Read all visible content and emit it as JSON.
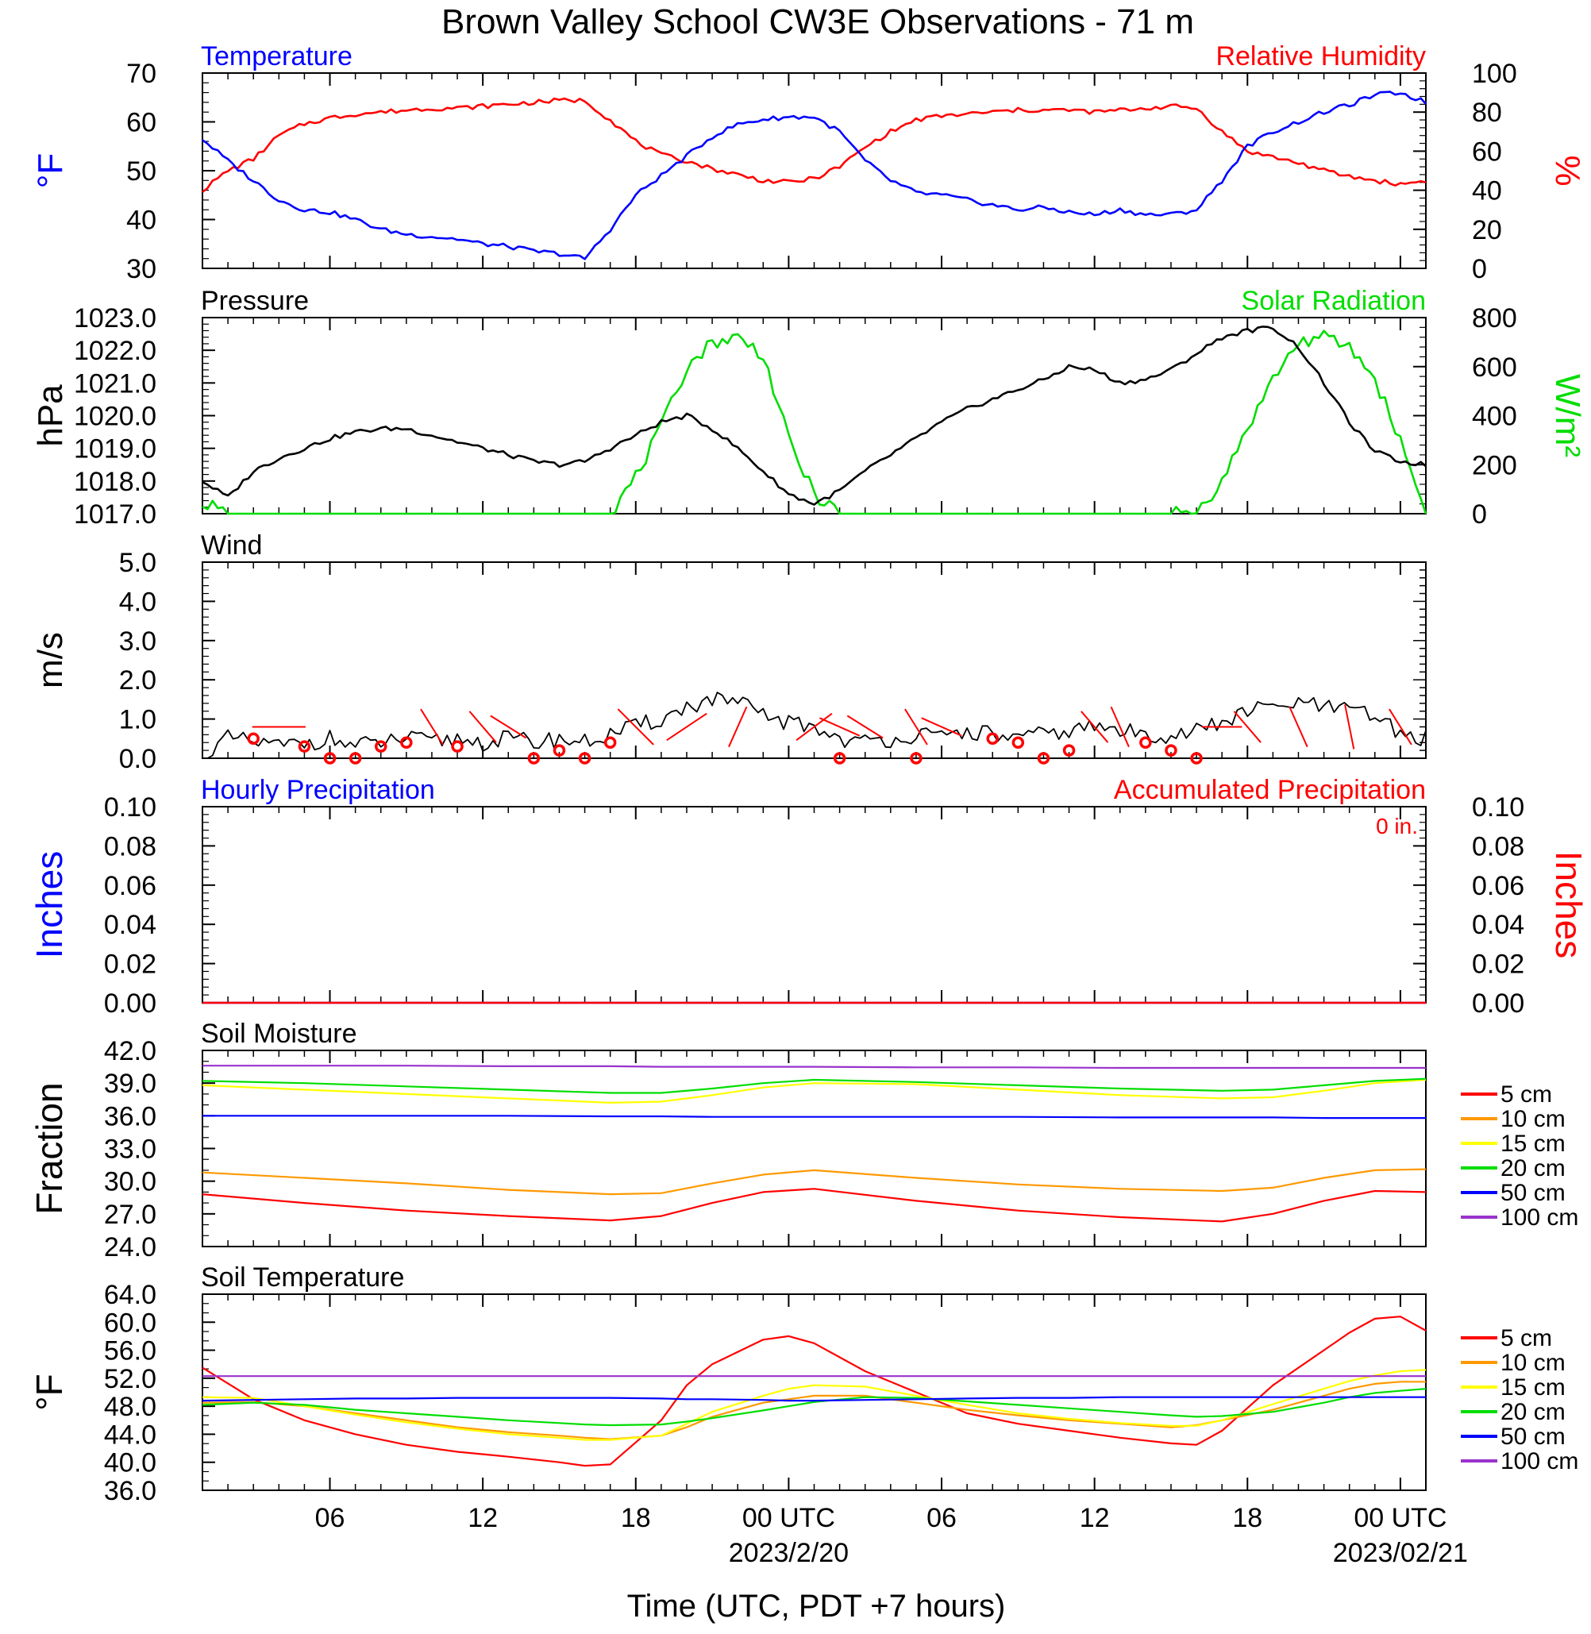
{
  "title": "Brown Valley School CW3E Observations - 71 m",
  "x_axis": {
    "label": "Time (UTC, PDT +7 hours)",
    "range_hours": [
      0,
      48
    ],
    "ticks": [
      {
        "h": 5,
        "label": "06"
      },
      {
        "h": 11,
        "label": "12"
      },
      {
        "h": 17,
        "label": "18"
      },
      {
        "h": 23,
        "label": "00 UTC"
      },
      {
        "h": 29,
        "label": "06"
      },
      {
        "h": 35,
        "label": "12"
      },
      {
        "h": 41,
        "label": "18"
      },
      {
        "h": 47,
        "label": "00 UTC"
      }
    ],
    "date_labels": [
      {
        "h": 23,
        "label": "2023/2/20"
      },
      {
        "h": 47,
        "label": "2023/02/21"
      }
    ]
  },
  "colors": {
    "blue": "#0000ff",
    "red": "#ff0000",
    "green": "#00dd00",
    "black": "#000000",
    "orange": "#ff9900",
    "yellow": "#ffff00",
    "purple": "#9933cc"
  },
  "chart_data": [
    {
      "type": "line",
      "panel": "temperature",
      "left_title": "Temperature",
      "right_title": "Relative Humidity",
      "ylabel_left": "°F",
      "ylabel_right": "%",
      "ylim_left": [
        30,
        70
      ],
      "ylim_right": [
        0,
        100
      ],
      "yticks_left": [
        "30",
        "40",
        "50",
        "60",
        "70"
      ],
      "yticks_right": [
        "0",
        "20",
        "40",
        "60",
        "80",
        "100"
      ],
      "x": [
        0,
        1,
        2,
        3,
        4,
        5,
        6,
        7,
        8,
        9,
        10,
        11,
        12,
        13,
        14,
        15,
        16,
        17,
        18,
        19,
        20,
        21,
        22,
        23,
        24,
        25,
        26,
        27,
        28,
        29,
        30,
        31,
        32,
        33,
        34,
        35,
        36,
        37,
        38,
        39,
        40,
        41,
        42,
        43,
        44,
        45,
        46,
        47,
        48
      ],
      "series": [
        {
          "name": "Temperature",
          "axis": "left",
          "color": "#0000ff",
          "values": [
            56.5,
            52,
            48,
            44,
            42,
            41.5,
            40,
            38,
            37,
            36.5,
            36,
            35,
            34.5,
            33.5,
            33,
            32,
            38,
            45,
            49,
            53,
            57,
            59.5,
            60.5,
            61,
            61,
            58,
            52,
            48,
            45.5,
            45,
            44,
            43,
            42,
            42.5,
            41.5,
            41,
            42,
            41,
            41,
            42,
            48,
            55,
            58,
            60,
            62,
            63.5,
            65.5,
            66,
            64
          ]
        },
        {
          "name": "Relative Humidity",
          "axis": "right",
          "color": "#ff0000",
          "values": [
            40,
            50,
            56,
            68,
            74,
            77,
            79,
            80,
            81,
            82,
            82,
            83,
            84,
            85,
            86,
            86,
            76,
            65,
            58,
            55,
            51,
            48,
            45,
            44,
            46,
            52,
            62,
            70,
            76,
            78,
            79,
            80,
            81,
            81,
            81,
            80,
            81,
            82,
            83,
            82,
            70,
            60,
            57,
            54,
            50,
            47,
            45,
            43,
            45
          ]
        }
      ]
    },
    {
      "type": "line",
      "panel": "pressure",
      "left_title": "Pressure",
      "right_title": "Solar Radiation",
      "ylabel_left": "hPa",
      "ylabel_right": "W/m²",
      "ylim_left": [
        1017,
        1023
      ],
      "ylim_right": [
        0,
        800
      ],
      "yticks_left": [
        "1017.0",
        "1018.0",
        "1019.0",
        "1020.0",
        "1021.0",
        "1022.0",
        "1023.0"
      ],
      "yticks_right": [
        "0",
        "200",
        "400",
        "600",
        "800"
      ],
      "x": [
        0,
        1,
        2,
        3,
        4,
        5,
        6,
        7,
        8,
        9,
        10,
        11,
        12,
        13,
        14,
        15,
        16,
        17,
        18,
        19,
        20,
        21,
        22,
        23,
        24,
        25,
        26,
        27,
        28,
        29,
        30,
        31,
        32,
        33,
        34,
        35,
        36,
        37,
        38,
        39,
        40,
        41,
        42,
        43,
        44,
        45,
        46,
        47,
        48
      ],
      "series": [
        {
          "name": "Pressure",
          "axis": "left",
          "color": "#000000",
          "values": [
            1018,
            1017.5,
            1018.3,
            1018.7,
            1019,
            1019.3,
            1019.5,
            1019.6,
            1019.6,
            1019.4,
            1019.2,
            1019,
            1018.8,
            1018.6,
            1018.5,
            1018.6,
            1019,
            1019.4,
            1019.8,
            1020,
            1019.6,
            1019,
            1018.3,
            1017.6,
            1017.3,
            1017.7,
            1018.3,
            1018.8,
            1019.3,
            1019.8,
            1020.2,
            1020.5,
            1020.8,
            1021.1,
            1021.5,
            1021.4,
            1021,
            1021.1,
            1021.4,
            1021.9,
            1022.4,
            1022.6,
            1022.7,
            1022.1,
            1021,
            1019.8,
            1018.9,
            1018.6,
            1018.5
          ]
        },
        {
          "name": "Solar Radiation",
          "axis": "right",
          "color": "#00dd00",
          "values": [
            50,
            0,
            0,
            0,
            0,
            0,
            0,
            0,
            0,
            0,
            0,
            0,
            0,
            0,
            0,
            0,
            0,
            150,
            350,
            600,
            700,
            720,
            650,
            300,
            80,
            0,
            0,
            0,
            0,
            0,
            0,
            0,
            0,
            0,
            0,
            0,
            0,
            0,
            0,
            10,
            130,
            350,
            550,
            700,
            720,
            680,
            550,
            300,
            0
          ]
        }
      ]
    },
    {
      "type": "line",
      "panel": "wind",
      "title": "Wind",
      "ylabel": "m/s",
      "ylim": [
        0,
        5
      ],
      "yticks": [
        "0.0",
        "1.0",
        "2.0",
        "3.0",
        "4.0",
        "5.0"
      ],
      "x": [
        0,
        1,
        2,
        3,
        4,
        5,
        6,
        7,
        8,
        9,
        10,
        11,
        12,
        13,
        14,
        15,
        16,
        17,
        18,
        19,
        20,
        21,
        22,
        23,
        24,
        25,
        26,
        27,
        28,
        29,
        30,
        31,
        32,
        33,
        34,
        35,
        36,
        37,
        38,
        39,
        40,
        41,
        42,
        43,
        44,
        45,
        46,
        47,
        48
      ],
      "series": [
        {
          "name": "Wind speed",
          "color": "#000000",
          "values": [
            0,
            0.5,
            0.4,
            0.3,
            0.4,
            0.5,
            0.3,
            0.4,
            0.5,
            0.4,
            0.5,
            0.4,
            0.5,
            0.4,
            0.5,
            0.4,
            0.6,
            0.8,
            1.0,
            1.3,
            1.5,
            1.4,
            1.1,
            0.9,
            0.8,
            0.5,
            0.4,
            0.5,
            0.6,
            0.5,
            0.7,
            0.6,
            0.5,
            0.6,
            0.7,
            0.8,
            0.7,
            0.6,
            0.6,
            0.7,
            0.9,
            1.2,
            1.3,
            1.4,
            1.3,
            1.2,
            1.1,
            0.6,
            0.5
          ]
        }
      ],
      "calm_markers_h": [
        2,
        4,
        5,
        6,
        7,
        8,
        10,
        13,
        14,
        15,
        16,
        25,
        28,
        31,
        32,
        33,
        34,
        37,
        38,
        39
      ],
      "calm_marker_speeds": [
        0.5,
        0.3,
        0,
        0,
        0.3,
        0.4,
        0.3,
        0,
        0.2,
        0,
        0.4,
        0,
        0,
        0.5,
        0.4,
        0,
        0.2,
        0.4,
        0.2,
        0
      ],
      "barbs": [
        {
          "h": 3,
          "dx": 1.2,
          "dy": 0
        },
        {
          "h": 9,
          "dx": 0.5,
          "dy": 0.8
        },
        {
          "h": 11,
          "dx": 0.6,
          "dy": 0.7
        },
        {
          "h": 12,
          "dx": 0.8,
          "dy": 0.5
        },
        {
          "h": 17,
          "dx": -0.8,
          "dy": -0.8
        },
        {
          "h": 19,
          "dx": 0.9,
          "dy": -0.6
        },
        {
          "h": 21,
          "dx": 0.4,
          "dy": -0.9
        },
        {
          "h": 24,
          "dx": 0.8,
          "dy": -0.6
        },
        {
          "h": 25,
          "dx": 0.9,
          "dy": 0.4
        },
        {
          "h": 26,
          "dx": 0.8,
          "dy": 0.5
        },
        {
          "h": 28,
          "dx": 0.5,
          "dy": 0.8
        },
        {
          "h": 29,
          "dx": 0.9,
          "dy": 0.4
        },
        {
          "h": 35,
          "dx": 0.6,
          "dy": 0.7
        },
        {
          "h": 36,
          "dx": 0.4,
          "dy": 0.9
        },
        {
          "h": 40,
          "dx": 0.9,
          "dy": 0
        },
        {
          "h": 41,
          "dx": -0.6,
          "dy": -0.7
        },
        {
          "h": 43,
          "dx": -0.4,
          "dy": -0.9
        },
        {
          "h": 45,
          "dx": -0.2,
          "dy": -1.0
        },
        {
          "h": 47,
          "dx": -0.5,
          "dy": -0.8
        }
      ]
    },
    {
      "type": "line",
      "panel": "precipitation",
      "left_title": "Hourly Precipitation",
      "right_title": "Accumulated Precipitation",
      "annotation": "0 in.",
      "ylabel_left": "Inches",
      "ylabel_right": "Inches",
      "ylim": [
        0,
        0.1
      ],
      "yticks": [
        "0.00",
        "0.02",
        "0.04",
        "0.06",
        "0.08",
        "0.10"
      ],
      "x": [
        0,
        48
      ],
      "series": [
        {
          "name": "Hourly Precipitation",
          "color": "#0000ff",
          "values": [
            0,
            0
          ]
        },
        {
          "name": "Accumulated Precipitation",
          "color": "#ff0000",
          "values": [
            0,
            0
          ]
        }
      ]
    },
    {
      "type": "line",
      "panel": "soil_moisture",
      "title": "Soil Moisture",
      "ylabel": "Fraction",
      "ylim": [
        24,
        42
      ],
      "yticks": [
        "24.0",
        "27.0",
        "30.0",
        "33.0",
        "36.0",
        "39.0",
        "42.0"
      ],
      "x": [
        0,
        4,
        8,
        12,
        16,
        18,
        20,
        22,
        24,
        28,
        32,
        36,
        40,
        42,
        44,
        46,
        48
      ],
      "series": [
        {
          "name": "5 cm",
          "color": "#ff0000",
          "values": [
            28.8,
            28,
            27.3,
            26.8,
            26.4,
            26.8,
            28,
            29,
            29.3,
            28.2,
            27.3,
            26.7,
            26.3,
            27,
            28.2,
            29.1,
            29
          ]
        },
        {
          "name": "10 cm",
          "color": "#ff9900",
          "values": [
            30.8,
            30.3,
            29.8,
            29.2,
            28.8,
            28.9,
            29.8,
            30.6,
            31,
            30.3,
            29.7,
            29.3,
            29.1,
            29.4,
            30.3,
            31,
            31.1
          ]
        },
        {
          "name": "15 cm",
          "color": "#ffff00",
          "values": [
            38.8,
            38.4,
            38,
            37.6,
            37.2,
            37.3,
            37.9,
            38.6,
            39,
            38.9,
            38.4,
            37.9,
            37.6,
            37.7,
            38.3,
            39,
            39.3
          ]
        },
        {
          "name": "20 cm",
          "color": "#00dd00",
          "values": [
            39.2,
            39,
            38.7,
            38.4,
            38.1,
            38.1,
            38.5,
            39,
            39.3,
            39.1,
            38.8,
            38.5,
            38.3,
            38.4,
            38.8,
            39.2,
            39.4
          ]
        },
        {
          "name": "50 cm",
          "color": "#0000ff",
          "values": [
            36,
            36,
            36,
            36,
            35.95,
            35.95,
            35.9,
            35.9,
            35.9,
            35.9,
            35.9,
            35.85,
            35.85,
            35.85,
            35.8,
            35.8,
            35.8
          ]
        },
        {
          "name": "100 cm",
          "color": "#9933cc",
          "values": [
            40.6,
            40.6,
            40.6,
            40.55,
            40.55,
            40.5,
            40.5,
            40.5,
            40.5,
            40.45,
            40.45,
            40.4,
            40.4,
            40.4,
            40.4,
            40.4,
            40.4
          ]
        }
      ]
    },
    {
      "type": "line",
      "panel": "soil_temperature",
      "title": "Soil Temperature",
      "ylabel": "°F",
      "ylim": [
        36,
        64
      ],
      "yticks": [
        "36.0",
        "40.0",
        "44.0",
        "48.0",
        "52.0",
        "56.0",
        "60.0",
        "64.0"
      ],
      "x": [
        0,
        2,
        4,
        6,
        8,
        10,
        12,
        14,
        15,
        16,
        18,
        19,
        20,
        22,
        23,
        24,
        26,
        28,
        30,
        32,
        34,
        36,
        38,
        39,
        40,
        42,
        44,
        45,
        46,
        47,
        48
      ],
      "series": [
        {
          "name": "5 cm",
          "color": "#ff0000",
          "values": [
            53.5,
            49,
            46,
            44,
            42.5,
            41.5,
            40.8,
            40,
            39.5,
            39.7,
            46,
            51,
            54,
            57.5,
            58,
            57,
            53,
            50,
            47,
            45.5,
            44.5,
            43.5,
            42.7,
            42.5,
            44.5,
            51,
            56,
            58.5,
            60.5,
            60.8,
            58.8
          ]
        },
        {
          "name": "10 cm",
          "color": "#ff9900",
          "values": [
            48.5,
            48.6,
            48,
            47,
            46,
            45,
            44.3,
            43.8,
            43.5,
            43.3,
            43.8,
            45,
            46.5,
            48.5,
            49,
            49.5,
            49.5,
            48.5,
            47.5,
            46.7,
            46,
            45.5,
            45,
            45.3,
            46,
            47.5,
            49.5,
            50.5,
            51.2,
            51.5,
            51.5
          ]
        },
        {
          "name": "15 cm",
          "color": "#ffff00",
          "values": [
            49.3,
            49.2,
            48,
            46.8,
            45.7,
            44.8,
            44,
            43.5,
            43.2,
            43.2,
            43.8,
            45.5,
            47.2,
            49.5,
            50.5,
            51,
            50.8,
            49.5,
            48.2,
            47,
            46.2,
            45.6,
            45.2,
            45.2,
            46,
            48.3,
            50.5,
            51.6,
            52.4,
            53,
            53.2
          ]
        },
        {
          "name": "20 cm",
          "color": "#00dd00",
          "values": [
            48.2,
            48.5,
            48.2,
            47.5,
            47,
            46.5,
            46,
            45.6,
            45.4,
            45.3,
            45.4,
            45.8,
            46.3,
            47.4,
            48,
            48.6,
            49.3,
            49.2,
            48.7,
            48.2,
            47.7,
            47.2,
            46.7,
            46.5,
            46.6,
            47.2,
            48.5,
            49.3,
            49.9,
            50.2,
            50.5
          ]
        },
        {
          "name": "50 cm",
          "color": "#0000ff",
          "values": [
            48.8,
            48.9,
            49,
            49.1,
            49.1,
            49.2,
            49.2,
            49.2,
            49.2,
            49.2,
            49.1,
            49,
            49,
            48.9,
            48.8,
            48.8,
            48.9,
            49,
            49.1,
            49.2,
            49.2,
            49.3,
            49.3,
            49.3,
            49.3,
            49.3,
            49.3,
            49.3,
            49.3,
            49.3,
            49.3
          ]
        },
        {
          "name": "100 cm",
          "color": "#9933cc",
          "values": [
            52.3,
            52.3,
            52.3,
            52.3,
            52.3,
            52.3,
            52.3,
            52.3,
            52.3,
            52.3,
            52.3,
            52.3,
            52.3,
            52.3,
            52.3,
            52.3,
            52.3,
            52.3,
            52.3,
            52.3,
            52.3,
            52.3,
            52.3,
            52.3,
            52.3,
            52.3,
            52.3,
            52.3,
            52.3,
            52.3,
            52.3
          ]
        }
      ]
    }
  ]
}
